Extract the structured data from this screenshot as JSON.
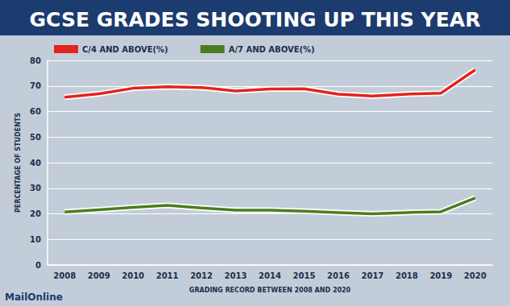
{
  "chart_data": {
    "type": "line",
    "title": "GCSE GRADES SHOOTING UP THIS YEAR",
    "x_label": "GRADING RECORD BETWEEN 2008 AND 2020",
    "y_label": "PERCENTAGE OF STUDENTS",
    "source": "MailOnline",
    "categories": [
      "2008",
      "2009",
      "2010",
      "2011",
      "2012",
      "2013",
      "2014",
      "2015",
      "2016",
      "2017",
      "2018",
      "2019",
      "2020"
    ],
    "series": [
      {
        "name": "C/4 AND ABOVE(%)",
        "color": "#e3231c",
        "values": [
          65.6,
          66.9,
          69.1,
          69.7,
          69.4,
          68.0,
          68.8,
          68.9,
          66.8,
          66.1,
          66.8,
          67.2,
          76.3
        ]
      },
      {
        "name": "A/7 AND ABOVE(%)",
        "color": "#4b7d1f",
        "values": [
          20.7,
          21.6,
          22.5,
          23.3,
          22.3,
          21.4,
          21.4,
          21.0,
          20.5,
          20.0,
          20.5,
          20.8,
          26.2
        ]
      }
    ],
    "ylim": [
      0,
      80
    ],
    "yticks": [
      0,
      10,
      20,
      30,
      40,
      50,
      60,
      70,
      80
    ],
    "grid": true,
    "legend": "top left"
  }
}
